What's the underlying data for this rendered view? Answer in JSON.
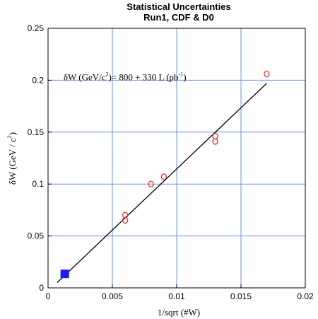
{
  "chart_data": {
    "type": "scatter",
    "title": "Statistical Uncertainties",
    "subtitle": "Run1, CDF & D0",
    "xlabel": "1/sqrt (#W)",
    "ylabel_main": "δW (GeV / c",
    "ylabel_sup": "2",
    "ylabel_end": ")",
    "xlim": [
      0,
      0.02
    ],
    "ylim": [
      0,
      0.25
    ],
    "x_ticks": [
      0,
      0.005,
      0.01,
      0.015,
      0.02
    ],
    "x_tick_labels": [
      "0",
      "0.005",
      "0.01",
      "0.015",
      "0.02"
    ],
    "y_ticks": [
      0,
      0.05,
      0.1,
      0.15,
      0.2,
      0.25
    ],
    "y_tick_labels": [
      "0",
      "0.05",
      "0.1",
      "0.15",
      "0.2",
      "0.25"
    ],
    "grid": true,
    "series": [
      {
        "marker": "open-circle",
        "color": "#e0302a",
        "points": [
          {
            "x": 0.006,
            "y": 0.07
          },
          {
            "x": 0.006,
            "y": 0.065
          },
          {
            "x": 0.008,
            "y": 0.1
          },
          {
            "x": 0.009,
            "y": 0.107
          },
          {
            "x": 0.013,
            "y": 0.146
          },
          {
            "x": 0.013,
            "y": 0.141
          },
          {
            "x": 0.017,
            "y": 0.206
          }
        ]
      },
      {
        "marker": "filled-square",
        "color": "#1a1aff",
        "points": [
          {
            "x": 0.0013,
            "y": 0.0135
          }
        ]
      }
    ],
    "fit_line": {
      "color": "#000000",
      "points": [
        {
          "x": 0.0007,
          "y": 0.005
        },
        {
          "x": 0.017,
          "y": 0.197
        }
      ]
    },
    "annotation": {
      "part1": "δW (GeV/c",
      "sup1": "2",
      "part2": ")= 800 + 330 L (pb",
      "sup2": "-1",
      "part3": ")",
      "x": 0.0012,
      "y": 0.2
    },
    "colors": {
      "grid": "#6f8fe0",
      "frame": "#000000"
    }
  }
}
